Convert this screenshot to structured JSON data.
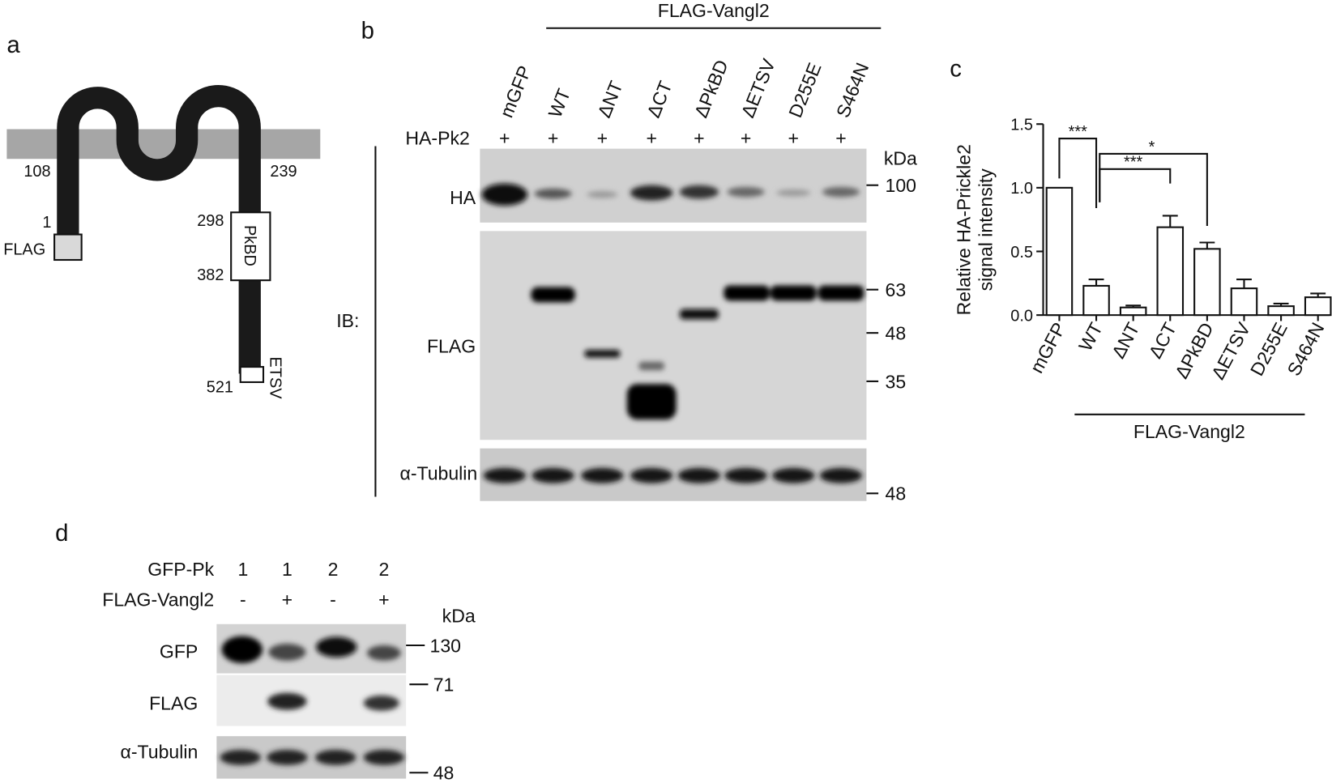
{
  "panel_a": {
    "letter": "a",
    "labels": {
      "n108": "108",
      "n239": "239",
      "n1": "1",
      "flag": "FLAG",
      "n298": "298",
      "n382": "382",
      "n521": "521",
      "pkbd": "PkBD",
      "etsv": "ETSV"
    }
  },
  "panel_b": {
    "letter": "b",
    "group_label": "FLAG-Vangl2",
    "lanes": [
      "mGFP",
      "WT",
      "ΔNT",
      "ΔCT",
      "ΔPkBD",
      "ΔETSV",
      "D255E",
      "S464N"
    ],
    "row_label": "HA-Pk2",
    "row_marks": [
      "+",
      "+",
      "+",
      "+",
      "+",
      "+",
      "+",
      "+"
    ],
    "ib_label": "IB:",
    "blot_labels": [
      "HA",
      "FLAG",
      "α-Tubulin"
    ],
    "kda": "kDa",
    "markers": [
      "100",
      "63",
      "48",
      "35",
      "48"
    ]
  },
  "chart_data": {
    "type": "bar",
    "letter": "c",
    "ylabel": [
      "Relative HA-Prickle2",
      "signal intensity"
    ],
    "categories": [
      "mGFP",
      "WT",
      "ΔNT",
      "ΔCT",
      "ΔPkBD",
      "ΔETSV",
      "D255E",
      "S464N"
    ],
    "values": [
      1.0,
      0.23,
      0.06,
      0.69,
      0.52,
      0.21,
      0.07,
      0.14
    ],
    "errors": [
      null,
      0.05,
      0.015,
      0.09,
      0.05,
      0.07,
      0.02,
      0.03
    ],
    "color": "#ffffff",
    "ylim": [
      0,
      1.5
    ],
    "yticks": [
      {
        "value": 0,
        "label": "0.0"
      },
      0.5,
      {
        "value": 1,
        "label": "1.0"
      },
      1.5
    ],
    "annotations": [
      "***",
      "***",
      "*"
    ],
    "group_label": "FLAG-Vangl2"
  },
  "panel_d": {
    "letter": "d",
    "rows": [
      {
        "label": "GFP-Pk",
        "marks": [
          "1",
          "1",
          "2",
          "2"
        ]
      },
      {
        "label": "FLAG-Vangl2",
        "marks": [
          "-",
          "+",
          "-",
          "+"
        ]
      }
    ],
    "kda": "kDa",
    "blot_labels": [
      "GFP",
      "FLAG",
      "α-Tubulin"
    ],
    "markers": [
      "130",
      "71",
      "48"
    ]
  }
}
